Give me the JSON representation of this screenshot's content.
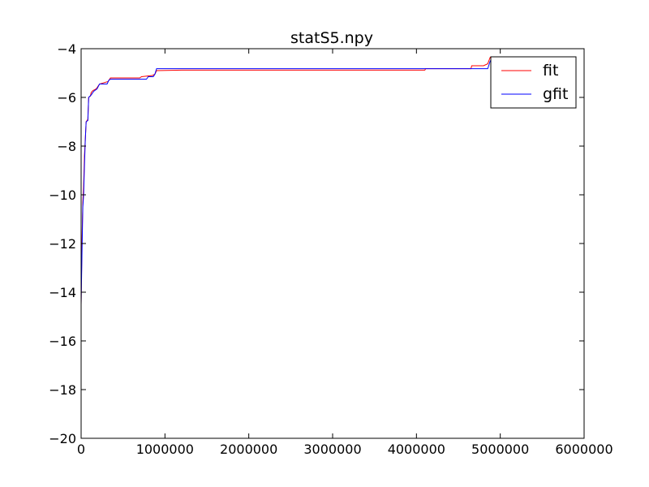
{
  "chart_data": {
    "type": "line",
    "title": "statS5.npy",
    "xlabel": "",
    "ylabel": "",
    "xlim": [
      0,
      6000000
    ],
    "ylim": [
      -20,
      -4
    ],
    "x_ticks": [
      0,
      1000000,
      2000000,
      3000000,
      4000000,
      5000000,
      6000000
    ],
    "x_tick_labels": [
      "0",
      "1000000",
      "2000000",
      "3000000",
      "4000000",
      "5000000",
      "6000000"
    ],
    "y_ticks": [
      -20,
      -18,
      -16,
      -14,
      -12,
      -10,
      -8,
      -6,
      -4
    ],
    "y_tick_labels": [
      "−20",
      "−18",
      "−16",
      "−14",
      "−12",
      "−10",
      "−8",
      "−6",
      "−4"
    ],
    "grid": false,
    "legend": "top-right",
    "series": [
      {
        "name": "fit",
        "color": "#ff0000",
        "points": [
          [
            0,
            -14.5
          ],
          [
            10000,
            -12.0
          ],
          [
            20000,
            -10.3
          ],
          [
            30000,
            -9.6
          ],
          [
            40000,
            -8.4
          ],
          [
            50000,
            -7.7
          ],
          [
            60000,
            -7.0
          ],
          [
            80000,
            -6.9
          ],
          [
            90000,
            -6.0
          ],
          [
            110000,
            -5.95
          ],
          [
            120000,
            -5.8
          ],
          [
            140000,
            -5.72
          ],
          [
            180000,
            -5.65
          ],
          [
            220000,
            -5.45
          ],
          [
            320000,
            -5.35
          ],
          [
            350000,
            -5.2
          ],
          [
            700000,
            -5.2
          ],
          [
            720000,
            -5.15
          ],
          [
            850000,
            -5.1
          ],
          [
            880000,
            -5.05
          ],
          [
            900000,
            -4.9
          ],
          [
            1200000,
            -4.88
          ],
          [
            4100000,
            -4.88
          ],
          [
            4110000,
            -4.82
          ],
          [
            4650000,
            -4.82
          ],
          [
            4660000,
            -4.7
          ],
          [
            4800000,
            -4.7
          ],
          [
            4850000,
            -4.62
          ],
          [
            4880000,
            -4.35
          ],
          [
            4920000,
            -4.35
          ]
        ]
      },
      {
        "name": "gfit",
        "color": "#0000ff",
        "points": [
          [
            0,
            -14.5
          ],
          [
            10000,
            -12.5
          ],
          [
            20000,
            -10.5
          ],
          [
            30000,
            -10.0
          ],
          [
            40000,
            -8.8
          ],
          [
            50000,
            -7.7
          ],
          [
            60000,
            -7.0
          ],
          [
            80000,
            -6.95
          ],
          [
            90000,
            -6.0
          ],
          [
            120000,
            -5.9
          ],
          [
            150000,
            -5.75
          ],
          [
            190000,
            -5.65
          ],
          [
            220000,
            -5.45
          ],
          [
            310000,
            -5.45
          ],
          [
            330000,
            -5.3
          ],
          [
            350000,
            -5.25
          ],
          [
            780000,
            -5.25
          ],
          [
            800000,
            -5.15
          ],
          [
            860000,
            -5.15
          ],
          [
            880000,
            -5.05
          ],
          [
            900000,
            -4.82
          ],
          [
            4850000,
            -4.82
          ],
          [
            4860000,
            -4.72
          ],
          [
            4880000,
            -4.5
          ],
          [
            4900000,
            -4.45
          ],
          [
            4920000,
            -4.4
          ]
        ]
      }
    ]
  }
}
